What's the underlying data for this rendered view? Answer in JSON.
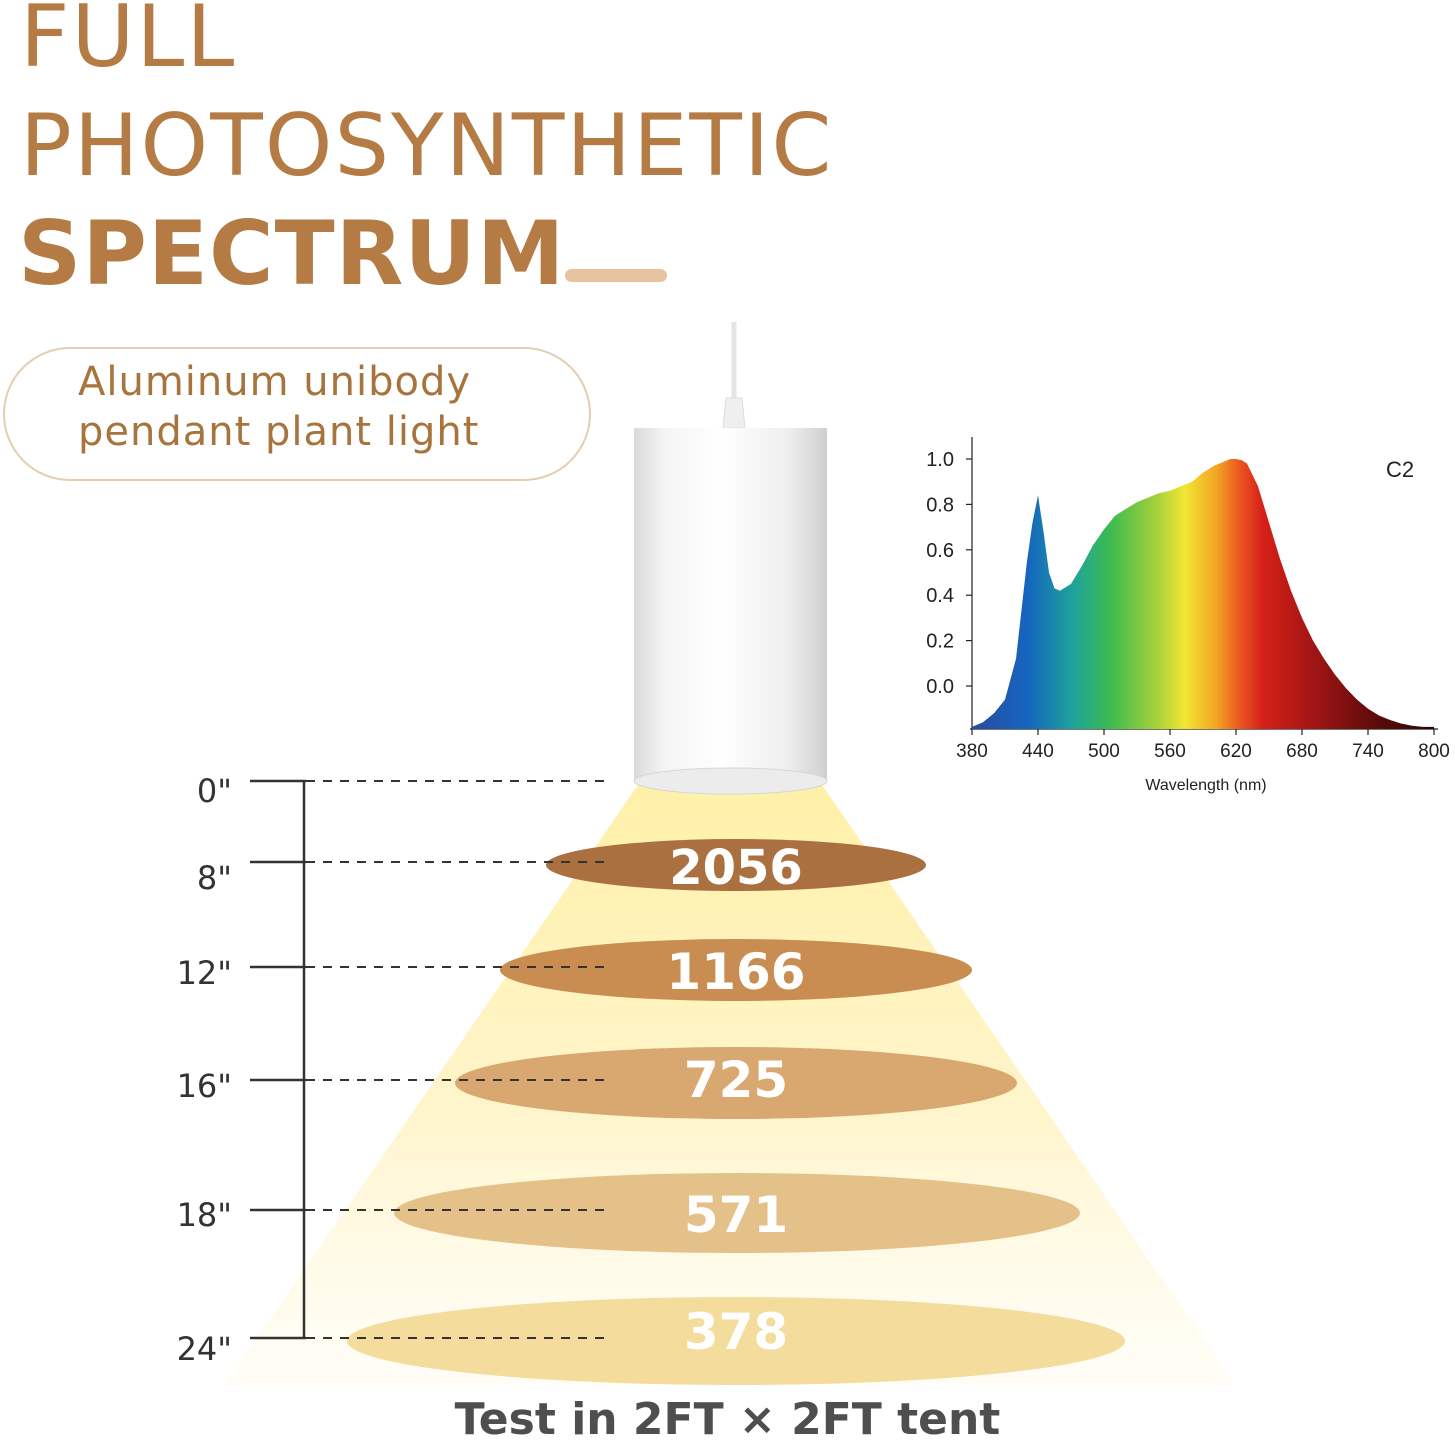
{
  "title": {
    "line1": "FULL",
    "line2": "PHOTOSYNTHETIC",
    "line3": "SPECTRUM"
  },
  "badge": {
    "line1": "Aluminum unibody",
    "line2": "pendant plant light"
  },
  "colors": {
    "brand": "#b57b45",
    "dash": "#e7c39e",
    "pill_border": "#e3cdb3",
    "beam": "#fff1b8",
    "footer_text": "#4e4e4e"
  },
  "light_icon": "pendant-lamp-icon",
  "height_scale": {
    "heights": [
      "0\"",
      "8\"",
      "12\"",
      "16\"",
      "18\"",
      "24\""
    ]
  },
  "ppfd_rings": [
    {
      "height": "8\"",
      "value": "2056",
      "color": "#ab7040"
    },
    {
      "height": "12\"",
      "value": "1166",
      "color": "#c98d52"
    },
    {
      "height": "16\"",
      "value": "725",
      "color": "#d8a870"
    },
    {
      "height": "18\"",
      "value": "571",
      "color": "#e5c18a"
    },
    {
      "height": "24\"",
      "value": "378",
      "color": "#f4dc9c"
    }
  ],
  "chart_data": {
    "type": "area",
    "series_label": "C2",
    "xlabel": "Wavelength (nm)",
    "ylabel": "",
    "xlim": [
      380,
      800
    ],
    "ylim": [
      -0.18,
      1.05
    ],
    "x_ticks": [
      380,
      440,
      500,
      560,
      620,
      680,
      740,
      800
    ],
    "y_ticks": [
      "0.0",
      "0.2",
      "0.4",
      "0.6",
      "0.8",
      "1.0"
    ],
    "grid": false,
    "x": [
      380,
      390,
      400,
      410,
      420,
      430,
      435,
      440,
      445,
      450,
      455,
      460,
      470,
      480,
      490,
      500,
      510,
      520,
      530,
      540,
      550,
      560,
      570,
      580,
      590,
      600,
      610,
      615,
      620,
      625,
      630,
      640,
      650,
      660,
      670,
      680,
      690,
      700,
      710,
      720,
      730,
      740,
      750,
      760,
      770,
      780,
      790,
      800
    ],
    "y": [
      -0.18,
      -0.16,
      -0.12,
      -0.06,
      0.12,
      0.55,
      0.72,
      0.84,
      0.68,
      0.5,
      0.43,
      0.42,
      0.45,
      0.53,
      0.62,
      0.69,
      0.75,
      0.78,
      0.81,
      0.83,
      0.85,
      0.86,
      0.88,
      0.9,
      0.94,
      0.97,
      0.99,
      1.0,
      1.0,
      0.995,
      0.98,
      0.88,
      0.72,
      0.56,
      0.42,
      0.3,
      0.2,
      0.12,
      0.05,
      -0.01,
      -0.06,
      -0.1,
      -0.13,
      -0.15,
      -0.165,
      -0.175,
      -0.18,
      -0.18
    ]
  },
  "footer": {
    "text": "Test in 2FT × 2FT tent"
  }
}
